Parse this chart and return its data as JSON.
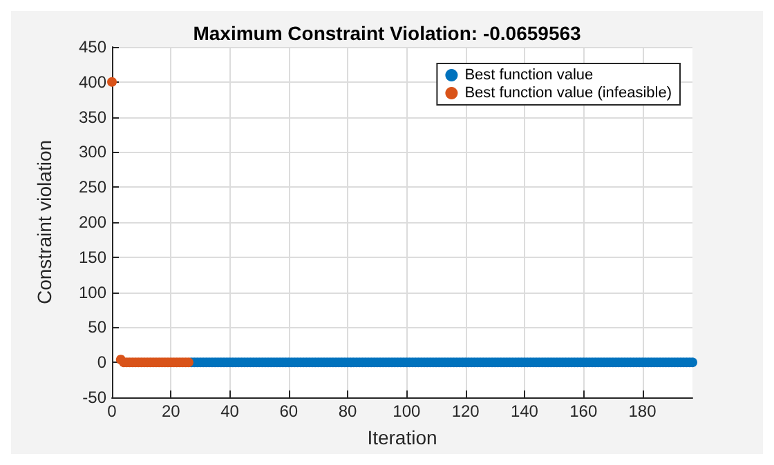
{
  "chart_data": {
    "type": "scatter",
    "title": "Maximum Constraint Violation: -0.0659563",
    "xlabel": "Iteration",
    "ylabel": "Constraint violation",
    "xlim": [
      0,
      197
    ],
    "xticks": [
      0,
      20,
      40,
      60,
      80,
      100,
      120,
      140,
      160,
      180
    ],
    "ylim": [
      -50,
      450
    ],
    "yticks": [
      -50,
      0,
      50,
      100,
      150,
      200,
      250,
      300,
      350,
      400,
      450
    ],
    "grid": true,
    "legend": "top right",
    "marker": "circle",
    "series": [
      {
        "name": "Best function value",
        "color": "#0072bd",
        "x": [
          27,
          28,
          29,
          30,
          31,
          32,
          33,
          34,
          35,
          36,
          37,
          38,
          39,
          40,
          41,
          42,
          43,
          44,
          45,
          46,
          47,
          48,
          49,
          50,
          51,
          52,
          53,
          54,
          55,
          56,
          57,
          58,
          59,
          60,
          61,
          62,
          63,
          64,
          65,
          66,
          67,
          68,
          69,
          70,
          71,
          72,
          73,
          74,
          75,
          76,
          77,
          78,
          79,
          80,
          81,
          82,
          83,
          84,
          85,
          86,
          87,
          88,
          89,
          90,
          91,
          92,
          93,
          94,
          95,
          96,
          97,
          98,
          99,
          100,
          101,
          102,
          103,
          104,
          105,
          106,
          107,
          108,
          109,
          110,
          111,
          112,
          113,
          114,
          115,
          116,
          117,
          118,
          119,
          120,
          121,
          122,
          123,
          124,
          125,
          126,
          127,
          128,
          129,
          130,
          131,
          132,
          133,
          134,
          135,
          136,
          137,
          138,
          139,
          140,
          141,
          142,
          143,
          144,
          145,
          146,
          147,
          148,
          149,
          150,
          151,
          152,
          153,
          154,
          155,
          156,
          157,
          158,
          159,
          160,
          161,
          162,
          163,
          164,
          165,
          166,
          167,
          168,
          169,
          170,
          171,
          172,
          173,
          174,
          175,
          176,
          177,
          178,
          179,
          180,
          181,
          182,
          183,
          184,
          185,
          186,
          187,
          188,
          189,
          190,
          191,
          192,
          193,
          194,
          195,
          196,
          197
        ],
        "values": [
          0,
          0,
          0,
          0,
          0,
          0,
          0,
          0,
          0,
          0,
          0,
          0,
          0,
          0,
          0,
          0,
          0,
          0,
          0,
          0,
          0,
          0,
          0,
          0,
          0,
          0,
          0,
          0,
          0,
          0,
          0,
          0,
          0,
          0,
          0,
          0,
          0,
          0,
          0,
          0,
          0,
          0,
          0,
          0,
          0,
          0,
          0,
          0,
          0,
          0,
          0,
          0,
          0,
          0,
          0,
          0,
          0,
          0,
          0,
          0,
          0,
          0,
          0,
          0,
          0,
          0,
          0,
          0,
          0,
          0,
          0,
          0,
          0,
          0,
          0,
          0,
          0,
          0,
          0,
          0,
          0,
          0,
          0,
          0,
          0,
          0,
          0,
          0,
          0,
          0,
          0,
          0,
          0,
          0,
          0,
          0,
          0,
          0,
          0,
          0,
          0,
          0,
          0,
          0,
          0,
          0,
          0,
          0,
          0,
          0,
          0,
          0,
          0,
          0,
          0,
          0,
          0,
          0,
          0,
          0,
          0,
          0,
          0,
          0,
          0,
          0,
          0,
          0,
          0,
          0,
          0,
          0,
          0,
          0,
          0,
          0,
          0,
          0,
          0,
          0,
          0,
          0,
          0,
          0,
          0,
          0,
          0,
          0,
          0,
          0,
          0,
          0,
          0,
          0,
          0,
          0,
          0,
          0,
          0,
          0,
          0,
          0,
          0,
          0,
          0,
          0,
          0,
          0,
          0,
          0,
          0
        ]
      },
      {
        "name": "Best function value (infeasible)",
        "color": "#d95319",
        "x": [
          0,
          1,
          2,
          3,
          4,
          5,
          6,
          7,
          8,
          9,
          10,
          11,
          12,
          13,
          14,
          15,
          16,
          17,
          18,
          19,
          20,
          21,
          22,
          23,
          24,
          25,
          26
        ],
        "values": [
          400,
          null,
          null,
          4,
          0,
          0,
          0,
          0,
          0,
          0,
          0,
          0,
          0,
          0,
          0,
          0,
          0,
          0,
          0,
          0,
          0,
          0,
          0,
          0,
          0,
          0,
          0
        ]
      }
    ]
  }
}
